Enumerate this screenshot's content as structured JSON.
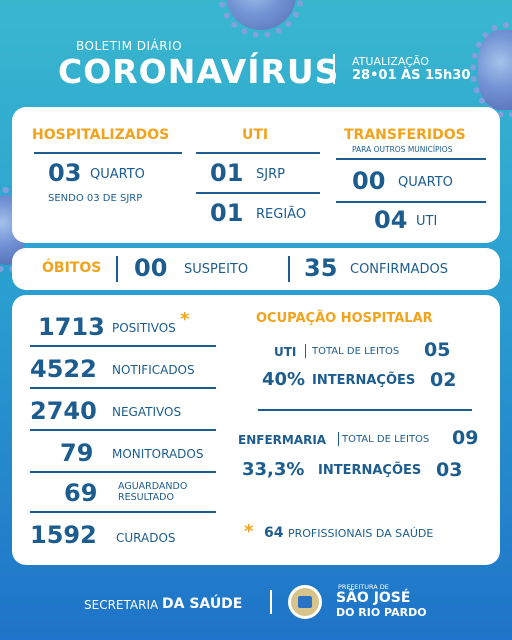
{
  "header": {
    "subtitle": "BOLETIM DIÁRIO",
    "title": "CORONAVÍRUS",
    "update_label": "ATUALIZAÇÃO",
    "update_value": "28•01 ÀS 15h30"
  },
  "hospitalizados": {
    "heading": "HOSPITALIZADOS",
    "count": "03",
    "unit": "QUARTO",
    "note": "SENDO 03 DE SJRP"
  },
  "uti": {
    "heading": "UTI",
    "row1_count": "01",
    "row1_label": "SJRP",
    "row2_count": "01",
    "row2_label": "REGIÃO"
  },
  "transferidos": {
    "heading": "TRANSFERIDOS",
    "note": "PARA OUTROS MUNICÍPIOS",
    "row1_count": "00",
    "row1_label": "QUARTO",
    "row2_count": "04",
    "row2_label": "UTI"
  },
  "obitos": {
    "heading": "ÓBITOS",
    "suspeito_count": "00",
    "suspeito_label": "SUSPEITO",
    "confirmados_count": "35",
    "confirmados_label": "CONFIRMADOS"
  },
  "stats": [
    {
      "value": "1713",
      "label": "POSITIVOS"
    },
    {
      "value": "4522",
      "label": "NOTIFICADOS"
    },
    {
      "value": "2740",
      "label": "NEGATIVOS"
    },
    {
      "value": "79",
      "label": "MONITORADOS"
    },
    {
      "value": "69",
      "label_line1": "AGUARDANDO",
      "label_line2": "RESULTADO"
    },
    {
      "value": "1592",
      "label": "CURADOS"
    }
  ],
  "ocupacao": {
    "heading": "OCUPAÇÃO HOSPITALAR",
    "uti_label": "UTI",
    "uti_total_label": "TOTAL DE LEITOS",
    "uti_total": "05",
    "uti_percent": "40%",
    "uti_intern_label": "INTERNAÇÕES",
    "uti_intern": "02",
    "enf_label": "ENFERMARIA",
    "enf_total_label": "TOTAL DE LEITOS",
    "enf_total": "09",
    "enf_percent": "33,3%",
    "enf_intern_label": "INTERNAÇÕES",
    "enf_intern": "03"
  },
  "footnote": {
    "asterisk": "*",
    "value": "64",
    "text": "PROFISSIONAIS DA SAÚDE"
  },
  "footer": {
    "secretaria": "SECRETARIA",
    "saude": "DA SAÚDE",
    "prefeitura": "PREFEITURA DE",
    "city_line1": "SÃO JOSÉ",
    "city_line2": "DO RIO PARDO"
  },
  "colors": {
    "accent": "#f1a31b",
    "text_blue": "#1c5c8e"
  }
}
